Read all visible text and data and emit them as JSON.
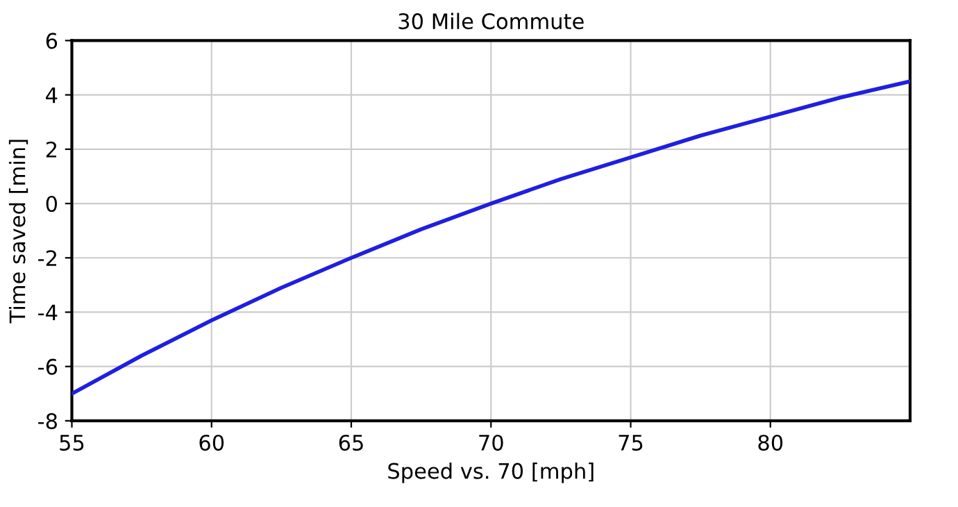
{
  "chart_data": {
    "type": "line",
    "title": "30 Mile Commute",
    "xlabel": "Speed vs. 70 [mph]",
    "ylabel": "Time saved [min]",
    "x": [
      55,
      57.5,
      60,
      62.5,
      65,
      67.5,
      70,
      72.5,
      75,
      77.5,
      80,
      82.5,
      85
    ],
    "series": [
      {
        "color": "#1f1fe0",
        "values": [
          -7.0,
          -5.6,
          -4.3,
          -3.1,
          -2.0,
          -0.95,
          0,
          0.9,
          1.7,
          2.5,
          3.2,
          3.9,
          4.5
        ]
      }
    ],
    "xlim": [
      55,
      85
    ],
    "xticks": [
      55,
      60,
      65,
      70,
      75,
      80
    ],
    "ylim": [
      -8,
      6
    ],
    "yticks": [
      -8,
      -6,
      -4,
      -2,
      0,
      2,
      4,
      6
    ],
    "grid": true,
    "line_style": "solid",
    "marker": "none"
  }
}
